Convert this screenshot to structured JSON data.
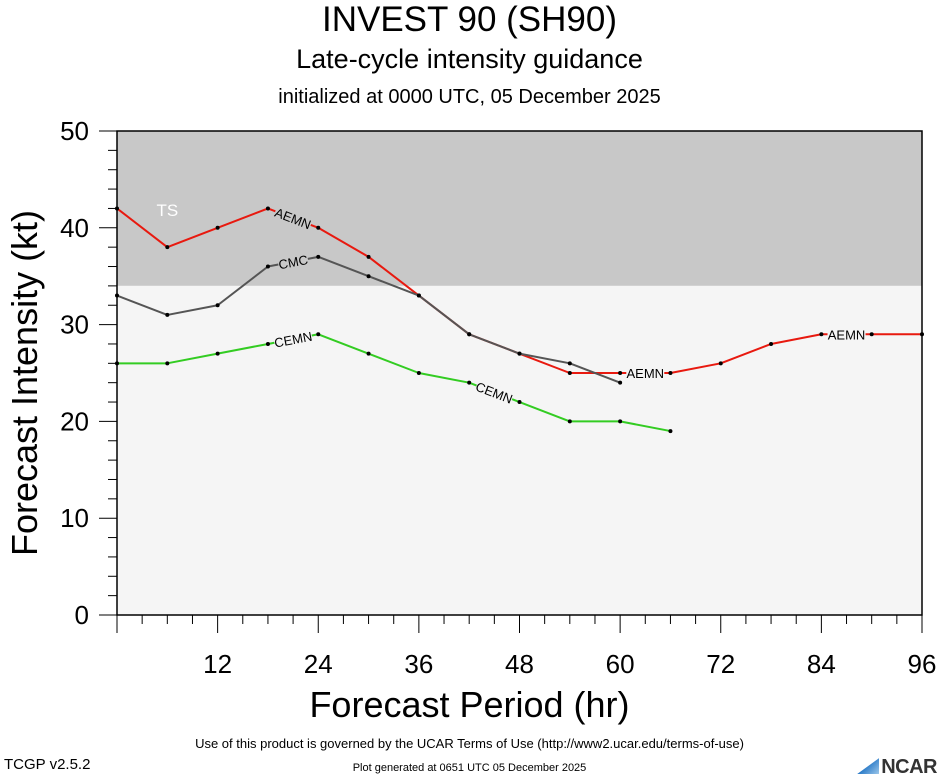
{
  "header": {
    "title": "INVEST 90 (SH90)",
    "subtitle": "Late-cycle intensity guidance",
    "init_line": "initialized at 0000 UTC, 05 December 2025"
  },
  "chart_data": {
    "type": "line",
    "xlabel": "Forecast Period (hr)",
    "ylabel": "Forecast Intensity (kt)",
    "xlim": [
      0,
      96
    ],
    "ylim": [
      0,
      50
    ],
    "x_ticks": [
      12,
      24,
      36,
      48,
      60,
      72,
      84,
      96
    ],
    "y_ticks": [
      0,
      10,
      20,
      30,
      40,
      50
    ],
    "grid": false,
    "bands": [
      {
        "label": "TS",
        "from": 34,
        "to": 50,
        "color": "#c8c8c8"
      },
      {
        "label": "",
        "from": 0,
        "to": 34,
        "color": "#f5f5f5"
      }
    ],
    "series": [
      {
        "name": "AEMN",
        "color": "#e8190f",
        "x": [
          0,
          6,
          12,
          18,
          24,
          30,
          36,
          42,
          48,
          54,
          60,
          66,
          72,
          78,
          84,
          90,
          96
        ],
        "values": [
          42,
          38,
          40,
          42,
          40,
          37,
          33,
          29,
          27,
          25,
          25,
          25,
          26,
          28,
          29,
          29,
          29
        ],
        "label_at": [
          18,
          60,
          84
        ]
      },
      {
        "name": "CMC",
        "color": "#555555",
        "x": [
          0,
          6,
          12,
          18,
          24,
          30,
          36,
          42,
          48,
          54,
          60
        ],
        "values": [
          33,
          31,
          32,
          36,
          37,
          35,
          33,
          29,
          27,
          26,
          24
        ],
        "label_at": [
          18
        ]
      },
      {
        "name": "CEMN",
        "color": "#33cc22",
        "x": [
          0,
          6,
          12,
          18,
          24,
          30,
          36,
          42,
          48,
          54,
          60,
          66
        ],
        "values": [
          26,
          26,
          27,
          28,
          29,
          27,
          25,
          24,
          22,
          20,
          20,
          19
        ],
        "label_at": [
          18,
          42
        ]
      }
    ]
  },
  "footer": {
    "terms": "Use of this product is governed by the UCAR Terms of Use (http://www2.ucar.edu/terms-of-use)",
    "version": "TCGP v2.5.2",
    "generated": "Plot generated at 0651 UTC   05 December 2025",
    "logo_text": "NCAR"
  }
}
